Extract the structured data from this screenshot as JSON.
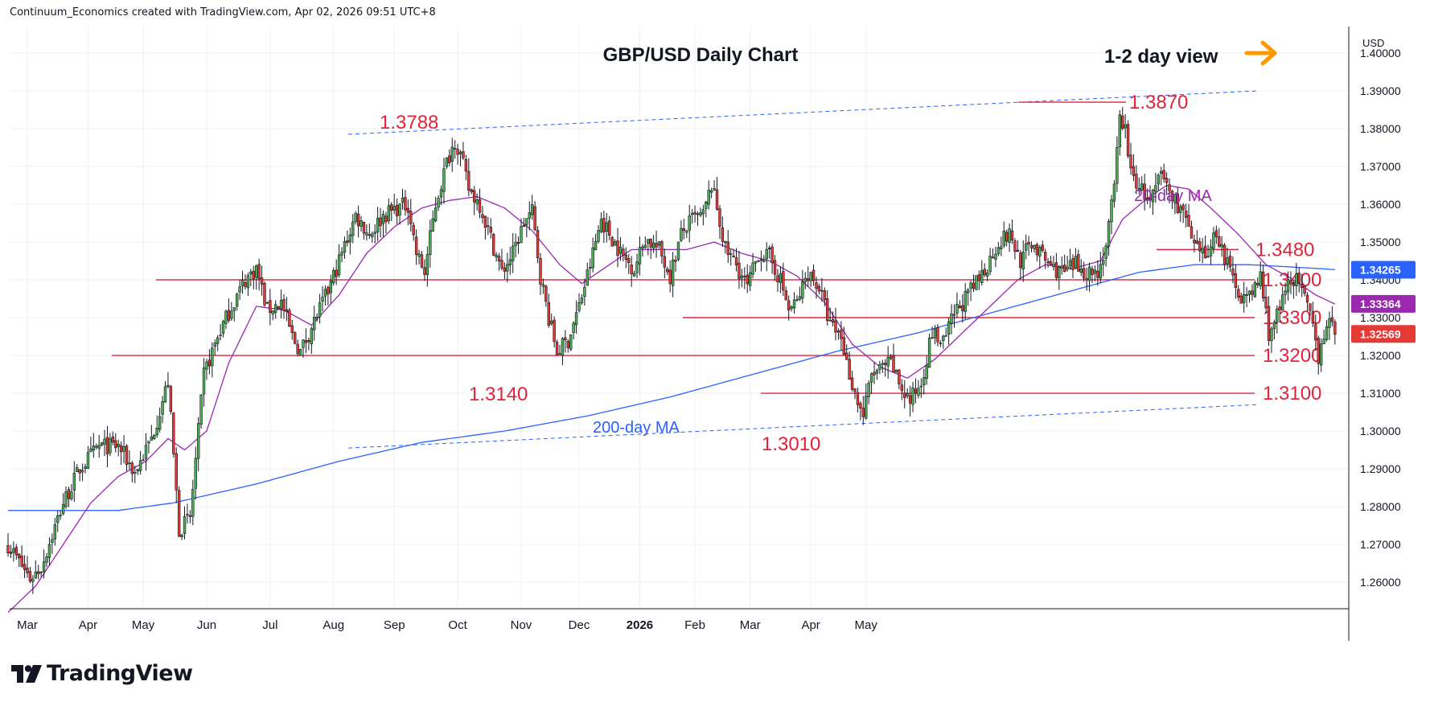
{
  "header": {
    "attribution": "Continuum_Economics created with TradingView.com, Apr 02, 2026 09:51 UTC+8"
  },
  "footer": {
    "brand": "TradingView"
  },
  "colors": {
    "up_candle": "#4caf50",
    "down_candle": "#e53935",
    "wick": "#131722",
    "level_line": "#e0243b",
    "ma20": "#9c27b0",
    "ma200": "#2962ff",
    "channel": "#2962ff",
    "arrow": "#ff9800",
    "annotation": "#e0243b"
  },
  "chart_data": {
    "type": "candlestick",
    "title": "GBP/USD Daily Chart",
    "view_note": "1-2 day view",
    "view_arrow_icon": "arrow-right-icon",
    "currency": "USD",
    "y_range": [
      1.253,
      1.407
    ],
    "y_ticks": [
      "1.40000",
      "1.39000",
      "1.38000",
      "1.37000",
      "1.36000",
      "1.35000",
      "1.34000",
      "1.33000",
      "1.32000",
      "1.31000",
      "1.30000",
      "1.29000",
      "1.28000",
      "1.27000",
      "1.26000"
    ],
    "x_labels": [
      "Mar",
      "Apr",
      "May",
      "Jun",
      "Jul",
      "Aug",
      "Sep",
      "Oct",
      "Nov",
      "Dec",
      "2026",
      "Feb",
      "Mar",
      "Apr",
      "May"
    ],
    "price_badges": [
      {
        "value": "1.34265",
        "color": "#2962ff"
      },
      {
        "value": "1.33364",
        "color": "#9c27b0"
      },
      {
        "value": "1.32569",
        "color": "#e53935"
      }
    ],
    "levels": [
      {
        "label": "1.3480",
        "price": 1.348
      },
      {
        "label": "1.3400",
        "price": 1.34
      },
      {
        "label": "1.3300",
        "price": 1.33
      },
      {
        "label": "1.3200",
        "price": 1.32
      },
      {
        "label": "1.3100",
        "price": 1.31
      }
    ],
    "annotations": [
      {
        "label": "1.3870",
        "price": 1.387,
        "kind": "high"
      },
      {
        "label": "1.3788",
        "price": 1.3788,
        "kind": "high"
      },
      {
        "label": "1.3140",
        "price": 1.314,
        "kind": "low"
      },
      {
        "label": "1.3010",
        "price": 1.301,
        "kind": "low"
      }
    ],
    "ma_labels": {
      "ma20": "20-day MA",
      "ma200": "200-day MA"
    },
    "anchors": [
      [
        0,
        1.27
      ],
      [
        8,
        1.261
      ],
      [
        12,
        1.264
      ],
      [
        20,
        1.281
      ],
      [
        26,
        1.29
      ],
      [
        33,
        1.296
      ],
      [
        40,
        1.296
      ],
      [
        46,
        1.289
      ],
      [
        52,
        1.298
      ],
      [
        58,
        1.313
      ],
      [
        62,
        1.274
      ],
      [
        66,
        1.277
      ],
      [
        71,
        1.315
      ],
      [
        76,
        1.325
      ],
      [
        81,
        1.333
      ],
      [
        86,
        1.34
      ],
      [
        90,
        1.343
      ],
      [
        94,
        1.332
      ],
      [
        99,
        1.334
      ],
      [
        103,
        1.325
      ],
      [
        106,
        1.321
      ],
      [
        111,
        1.329
      ],
      [
        116,
        1.337
      ],
      [
        121,
        1.347
      ],
      [
        126,
        1.357
      ],
      [
        131,
        1.352
      ],
      [
        136,
        1.357
      ],
      [
        141,
        1.359
      ],
      [
        145,
        1.36
      ],
      [
        148,
        1.347
      ],
      [
        151,
        1.342
      ],
      [
        155,
        1.36
      ],
      [
        159,
        1.371
      ],
      [
        162,
        1.377
      ],
      [
        164,
        1.373
      ],
      [
        167,
        1.364
      ],
      [
        171,
        1.36
      ],
      [
        175,
        1.351
      ],
      [
        179,
        1.342
      ],
      [
        183,
        1.347
      ],
      [
        187,
        1.355
      ],
      [
        190,
        1.358
      ],
      [
        193,
        1.341
      ],
      [
        196,
        1.33
      ],
      [
        199,
        1.321
      ],
      [
        203,
        1.324
      ],
      [
        207,
        1.333
      ],
      [
        211,
        1.344
      ],
      [
        215,
        1.356
      ],
      [
        219,
        1.351
      ],
      [
        223,
        1.346
      ],
      [
        227,
        1.343
      ],
      [
        231,
        1.351
      ],
      [
        236,
        1.348
      ],
      [
        240,
        1.341
      ],
      [
        244,
        1.352
      ],
      [
        248,
        1.356
      ],
      [
        252,
        1.357
      ],
      [
        255,
        1.365
      ],
      [
        257,
        1.359
      ],
      [
        260,
        1.348
      ],
      [
        264,
        1.344
      ],
      [
        268,
        1.338
      ],
      [
        272,
        1.347
      ],
      [
        276,
        1.346
      ],
      [
        280,
        1.34
      ],
      [
        283,
        1.332
      ],
      [
        286,
        1.334
      ],
      [
        290,
        1.342
      ],
      [
        294,
        1.338
      ],
      [
        298,
        1.328
      ],
      [
        302,
        1.325
      ],
      [
        304,
        1.318
      ],
      [
        307,
        1.31
      ],
      [
        310,
        1.304
      ],
      [
        313,
        1.315
      ],
      [
        316,
        1.316
      ],
      [
        320,
        1.318
      ],
      [
        324,
        1.311
      ],
      [
        327,
        1.308
      ],
      [
        331,
        1.313
      ],
      [
        335,
        1.326
      ],
      [
        339,
        1.323
      ],
      [
        343,
        1.331
      ],
      [
        347,
        1.335
      ],
      [
        351,
        1.339
      ],
      [
        355,
        1.344
      ],
      [
        359,
        1.35
      ],
      [
        363,
        1.352
      ],
      [
        367,
        1.345
      ],
      [
        371,
        1.35
      ],
      [
        375,
        1.346
      ],
      [
        379,
        1.343
      ],
      [
        383,
        1.342
      ],
      [
        387,
        1.344
      ],
      [
        391,
        1.342
      ],
      [
        395,
        1.342
      ],
      [
        398,
        1.349
      ],
      [
        401,
        1.364
      ],
      [
        403,
        1.383
      ],
      [
        405,
        1.38
      ],
      [
        407,
        1.368
      ],
      [
        410,
        1.365
      ],
      [
        414,
        1.36
      ],
      [
        418,
        1.368
      ],
      [
        422,
        1.362
      ],
      [
        426,
        1.358
      ],
      [
        430,
        1.348
      ],
      [
        434,
        1.346
      ],
      [
        438,
        1.353
      ],
      [
        441,
        1.346
      ],
      [
        444,
        1.34
      ],
      [
        447,
        1.336
      ],
      [
        450,
        1.335
      ],
      [
        454,
        1.341
      ],
      [
        457,
        1.326
      ],
      [
        461,
        1.332
      ],
      [
        465,
        1.341
      ],
      [
        468,
        1.339
      ],
      [
        472,
        1.33
      ],
      [
        475,
        1.32
      ],
      [
        478,
        1.329
      ],
      [
        481,
        1.3262
      ]
    ],
    "ma20_anchors": [
      [
        0,
        1.252
      ],
      [
        10,
        1.259
      ],
      [
        20,
        1.27
      ],
      [
        30,
        1.281
      ],
      [
        40,
        1.288
      ],
      [
        50,
        1.292
      ],
      [
        58,
        1.298
      ],
      [
        64,
        1.295
      ],
      [
        72,
        1.3
      ],
      [
        80,
        1.318
      ],
      [
        90,
        1.333
      ],
      [
        100,
        1.332
      ],
      [
        110,
        1.328
      ],
      [
        120,
        1.336
      ],
      [
        130,
        1.347
      ],
      [
        140,
        1.354
      ],
      [
        150,
        1.359
      ],
      [
        160,
        1.361
      ],
      [
        170,
        1.362
      ],
      [
        180,
        1.359
      ],
      [
        190,
        1.353
      ],
      [
        200,
        1.344
      ],
      [
        208,
        1.339
      ],
      [
        216,
        1.343
      ],
      [
        226,
        1.348
      ],
      [
        236,
        1.348
      ],
      [
        246,
        1.348
      ],
      [
        256,
        1.35
      ],
      [
        266,
        1.347
      ],
      [
        276,
        1.345
      ],
      [
        286,
        1.341
      ],
      [
        296,
        1.334
      ],
      [
        306,
        1.323
      ],
      [
        316,
        1.317
      ],
      [
        326,
        1.314
      ],
      [
        336,
        1.319
      ],
      [
        346,
        1.326
      ],
      [
        356,
        1.333
      ],
      [
        366,
        1.34
      ],
      [
        376,
        1.344
      ],
      [
        386,
        1.343
      ],
      [
        396,
        1.345
      ],
      [
        404,
        1.356
      ],
      [
        412,
        1.361
      ],
      [
        420,
        1.365
      ],
      [
        428,
        1.364
      ],
      [
        436,
        1.359
      ],
      [
        446,
        1.352
      ],
      [
        456,
        1.344
      ],
      [
        466,
        1.34
      ],
      [
        474,
        1.336
      ],
      [
        481,
        1.3336
      ]
    ],
    "ma200_anchors": [
      [
        0,
        1.279
      ],
      [
        40,
        1.279
      ],
      [
        60,
        1.281
      ],
      [
        90,
        1.286
      ],
      [
        120,
        1.292
      ],
      [
        150,
        1.297
      ],
      [
        180,
        1.3
      ],
      [
        210,
        1.304
      ],
      [
        240,
        1.309
      ],
      [
        270,
        1.315
      ],
      [
        300,
        1.321
      ],
      [
        330,
        1.326
      ],
      [
        360,
        1.332
      ],
      [
        390,
        1.338
      ],
      [
        410,
        1.342
      ],
      [
        430,
        1.344
      ],
      [
        450,
        1.344
      ],
      [
        470,
        1.3432
      ],
      [
        481,
        1.3427
      ]
    ]
  }
}
